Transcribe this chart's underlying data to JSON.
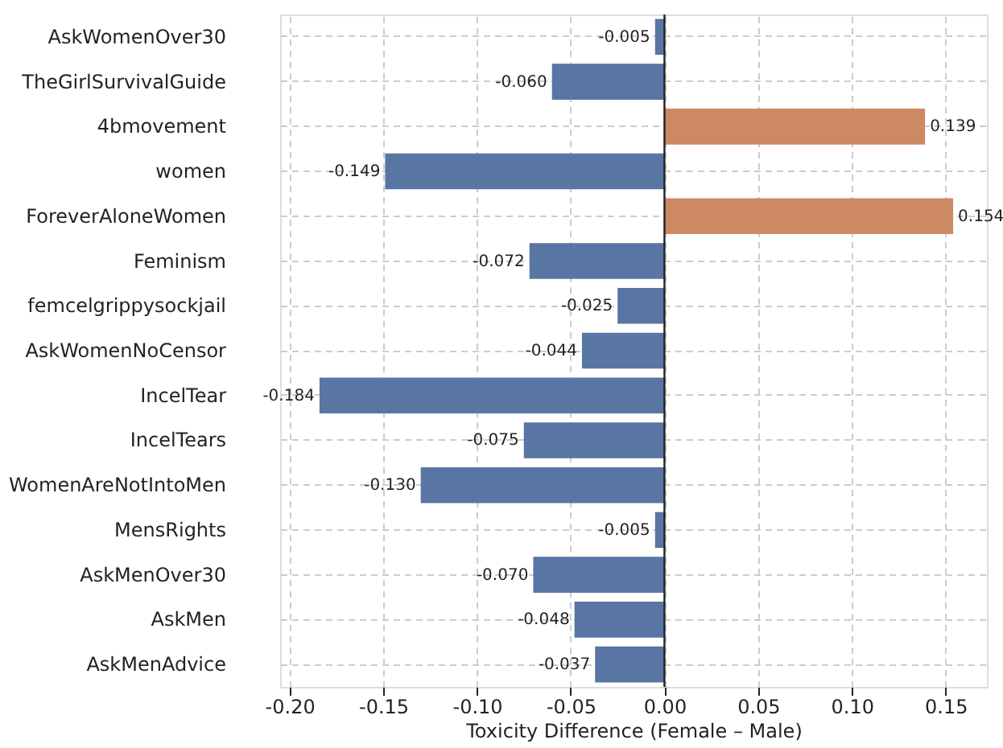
{
  "chart_data": {
    "type": "bar",
    "orientation": "horizontal",
    "xlabel": "Toxicity Difference (Female – Male)",
    "categories": [
      "AskWomenOver30",
      "TheGirlSurvivalGuide",
      "4bmovement",
      "women",
      "ForeverAloneWomen",
      "Feminism",
      "femcelgrippysockjail",
      "AskWomenNoCensor",
      "IncelTear",
      "IncelTears",
      "WomenAreNotIntoMen",
      "MensRights",
      "AskMenOver30",
      "AskMen",
      "AskMenAdvice"
    ],
    "values": [
      -0.005,
      -0.06,
      0.139,
      -0.149,
      0.154,
      -0.072,
      -0.025,
      -0.044,
      -0.184,
      -0.075,
      -0.13,
      -0.005,
      -0.07,
      -0.048,
      -0.037
    ],
    "value_labels": [
      "-0.005",
      "-0.060",
      "0.139",
      "-0.149",
      "0.154",
      "-0.072",
      "-0.025",
      "-0.044",
      "-0.184",
      "-0.075",
      "-0.130",
      "-0.005",
      "-0.070",
      "-0.048",
      "-0.037"
    ],
    "colors": [
      "#5875a4",
      "#5875a4",
      "#cc8963",
      "#5875a4",
      "#cc8963",
      "#5875a4",
      "#5875a4",
      "#5875a4",
      "#5875a4",
      "#5875a4",
      "#5875a4",
      "#5875a4",
      "#5875a4",
      "#5875a4",
      "#5875a4"
    ],
    "xlim": [
      -0.205,
      0.172
    ],
    "xticks": [
      {
        "value": -0.2,
        "label": "-0.20"
      },
      {
        "value": -0.15,
        "label": "-0.15"
      },
      {
        "value": -0.1,
        "label": "-0.10"
      },
      {
        "value": -0.05,
        "label": "-0.05"
      },
      {
        "value": 0,
        "label": "0.00"
      },
      {
        "value": 0.05,
        "label": "0.05"
      },
      {
        "value": 0.1,
        "label": "0.10"
      },
      {
        "value": 0.15,
        "label": "0.15"
      }
    ],
    "ref_lines": [
      {
        "axis": "x",
        "value": 0,
        "color": "#222222"
      }
    ],
    "grid": true
  }
}
